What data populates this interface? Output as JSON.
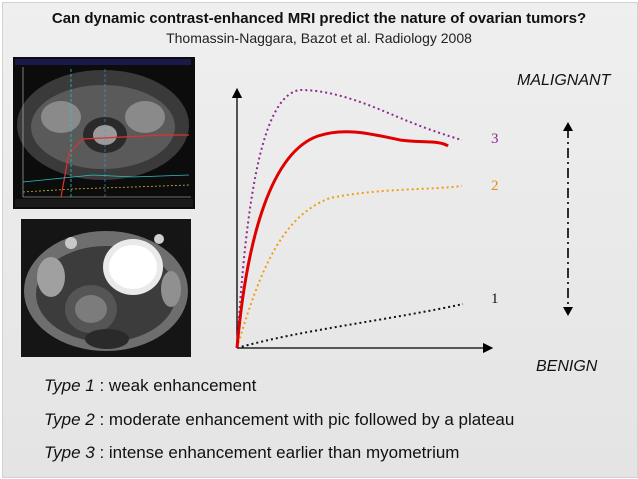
{
  "header": {
    "title": "Can dynamic contrast-enhanced MRI predict the nature of ovarian tumors?",
    "subtitle": "Thomassin-Naggara, Bazot et al. Radiology 2008"
  },
  "images": {
    "mri_curves_screenshot": "mri-enhancement-curve-screen",
    "mri_axial_image": "pelvic-mri-axial-image"
  },
  "diagram": {
    "scale_top": "MALIGNANT",
    "scale_bottom": "BENIGN",
    "curves": [
      {
        "label": "1",
        "color": "#111111",
        "style": "dotted"
      },
      {
        "label": "2",
        "color": "#f39c12",
        "style": "dotted"
      },
      {
        "label": "3",
        "color": "#8e2a8e",
        "style": "dotted"
      }
    ],
    "label_colors": {
      "1": "#111111",
      "2": "#e58e1a",
      "3": "#8e2a8e"
    },
    "red_curve_color": "#e00000"
  },
  "legend": [
    {
      "type": "Type 1",
      "desc": " : weak enhancement"
    },
    {
      "type": "Type 2",
      "desc": " : moderate enhancement with pic followed by a plateau"
    },
    {
      "type": "Type 3",
      "desc": " : intense enhancement earlier than myometrium"
    }
  ]
}
